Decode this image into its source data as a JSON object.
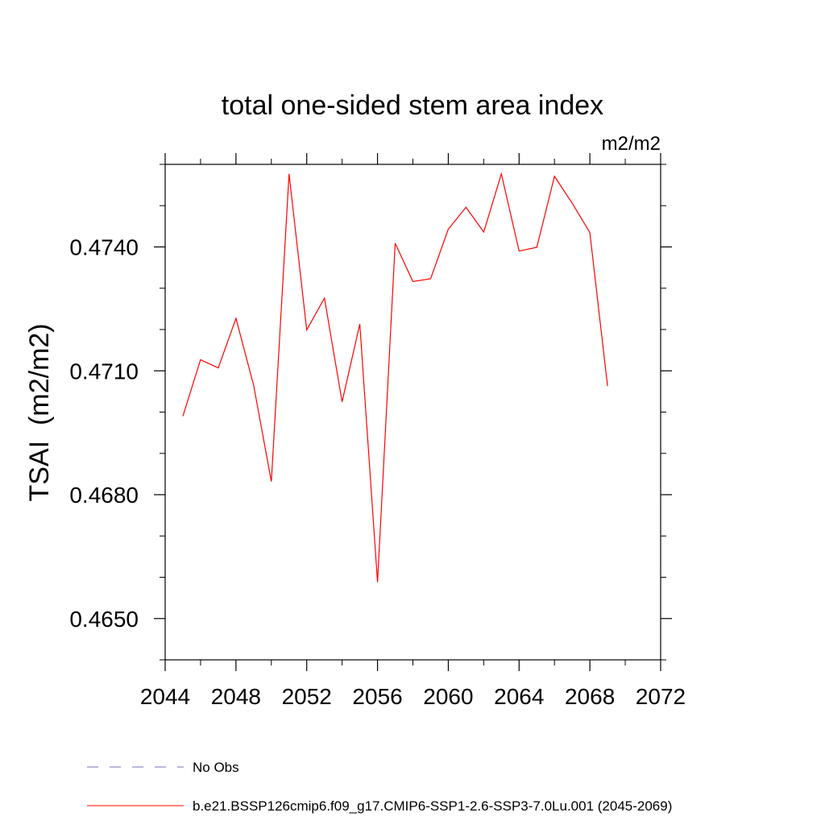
{
  "chart_data": {
    "type": "line",
    "title": "total one-sided stem area index",
    "units_label": "m2/m2",
    "ylabel": "TSAI  (m2/m2)",
    "xlabel": "",
    "xlim": [
      2044,
      2072
    ],
    "ylim": [
      0.464,
      0.476
    ],
    "x_ticks_major": [
      2044,
      2048,
      2052,
      2056,
      2060,
      2064,
      2068,
      2072
    ],
    "x_tick_labels": [
      "2044",
      "2048",
      "2052",
      "2056",
      "2060",
      "2064",
      "2068",
      "2072"
    ],
    "x_ticks_minor": [
      2046,
      2050,
      2054,
      2058,
      2062,
      2066,
      2070
    ],
    "y_ticks_major": [
      0.465,
      0.468,
      0.471,
      0.474
    ],
    "y_tick_labels": [
      "0.4650",
      "0.4680",
      "0.4710",
      "0.4740"
    ],
    "y_ticks_minor": [
      0.464,
      0.466,
      0.467,
      0.469,
      0.47,
      0.472,
      0.473,
      0.475,
      0.476
    ],
    "grid": false,
    "legend_position": "bottom",
    "series": [
      {
        "name": "b.e21.BSSP126cmip6.f09_g17.CMIP6-SSP1-2.6-SSP3-7.0Lu.001 (2045-2069)",
        "color": "#ff0000",
        "style": "solid",
        "x": [
          2045,
          2046,
          2047,
          2048,
          2049,
          2050,
          2051,
          2052,
          2053,
          2054,
          2055,
          2056,
          2057,
          2058,
          2059,
          2060,
          2061,
          2062,
          2063,
          2064,
          2065,
          2066,
          2067,
          2068,
          2069
        ],
        "y": [
          0.4699,
          0.47127,
          0.47107,
          0.47227,
          0.47065,
          0.46832,
          0.47577,
          0.47199,
          0.47276,
          0.47025,
          0.47213,
          0.46588,
          0.47409,
          0.47316,
          0.47323,
          0.47443,
          0.47496,
          0.47436,
          0.47577,
          0.4739,
          0.47399,
          0.47571,
          0.47506,
          0.47435,
          0.47063
        ]
      }
    ],
    "legend": [
      {
        "label": "No Obs",
        "color": "#7070c0",
        "style": "dashed"
      },
      {
        "label": "b.e21.BSSP126cmip6.f09_g17.CMIP6-SSP1-2.6-SSP3-7.0Lu.001 (2045-2069)",
        "color": "#ff0000",
        "style": "solid"
      }
    ]
  }
}
